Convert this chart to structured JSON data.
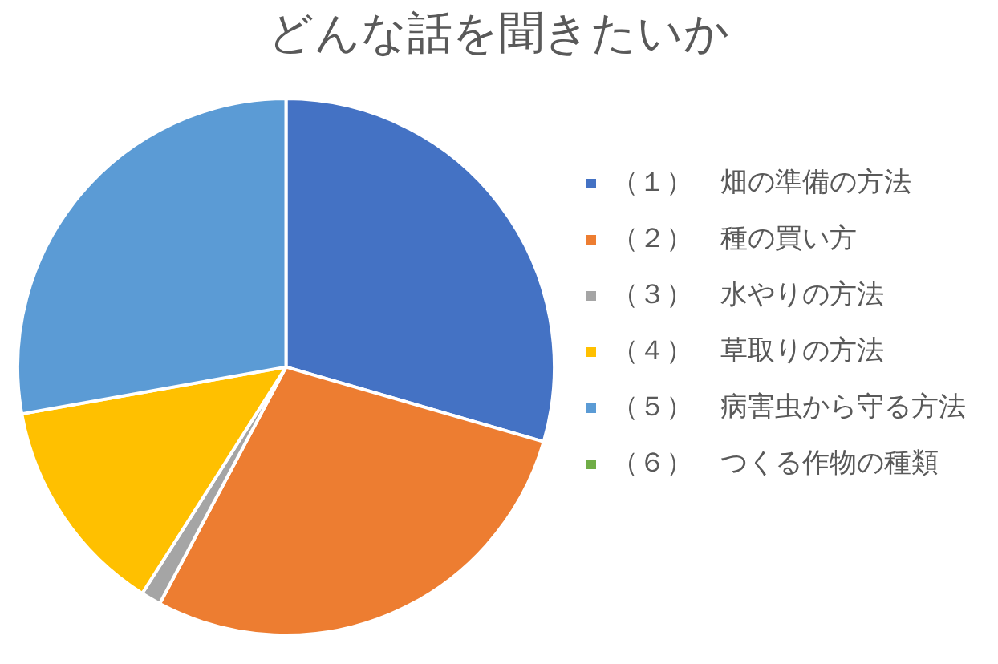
{
  "chart_data": {
    "type": "pie",
    "title": "どんな話を聞きたいか",
    "categories": [
      "（１）　畑の準備の方法",
      "（２）　種の買い方",
      "（３）　水やりの方法",
      "（４）　草取りの方法",
      "（５）　病害虫から守る方法",
      "（６）　つくる作物の種類"
    ],
    "values": [
      29.5,
      28.3,
      1.2,
      13.2,
      27.8,
      0
    ],
    "colors": [
      "#4472c4",
      "#ed7d31",
      "#a5a5a5",
      "#ffc000",
      "#5b9bd5",
      "#70ad47"
    ],
    "legend": "right"
  }
}
